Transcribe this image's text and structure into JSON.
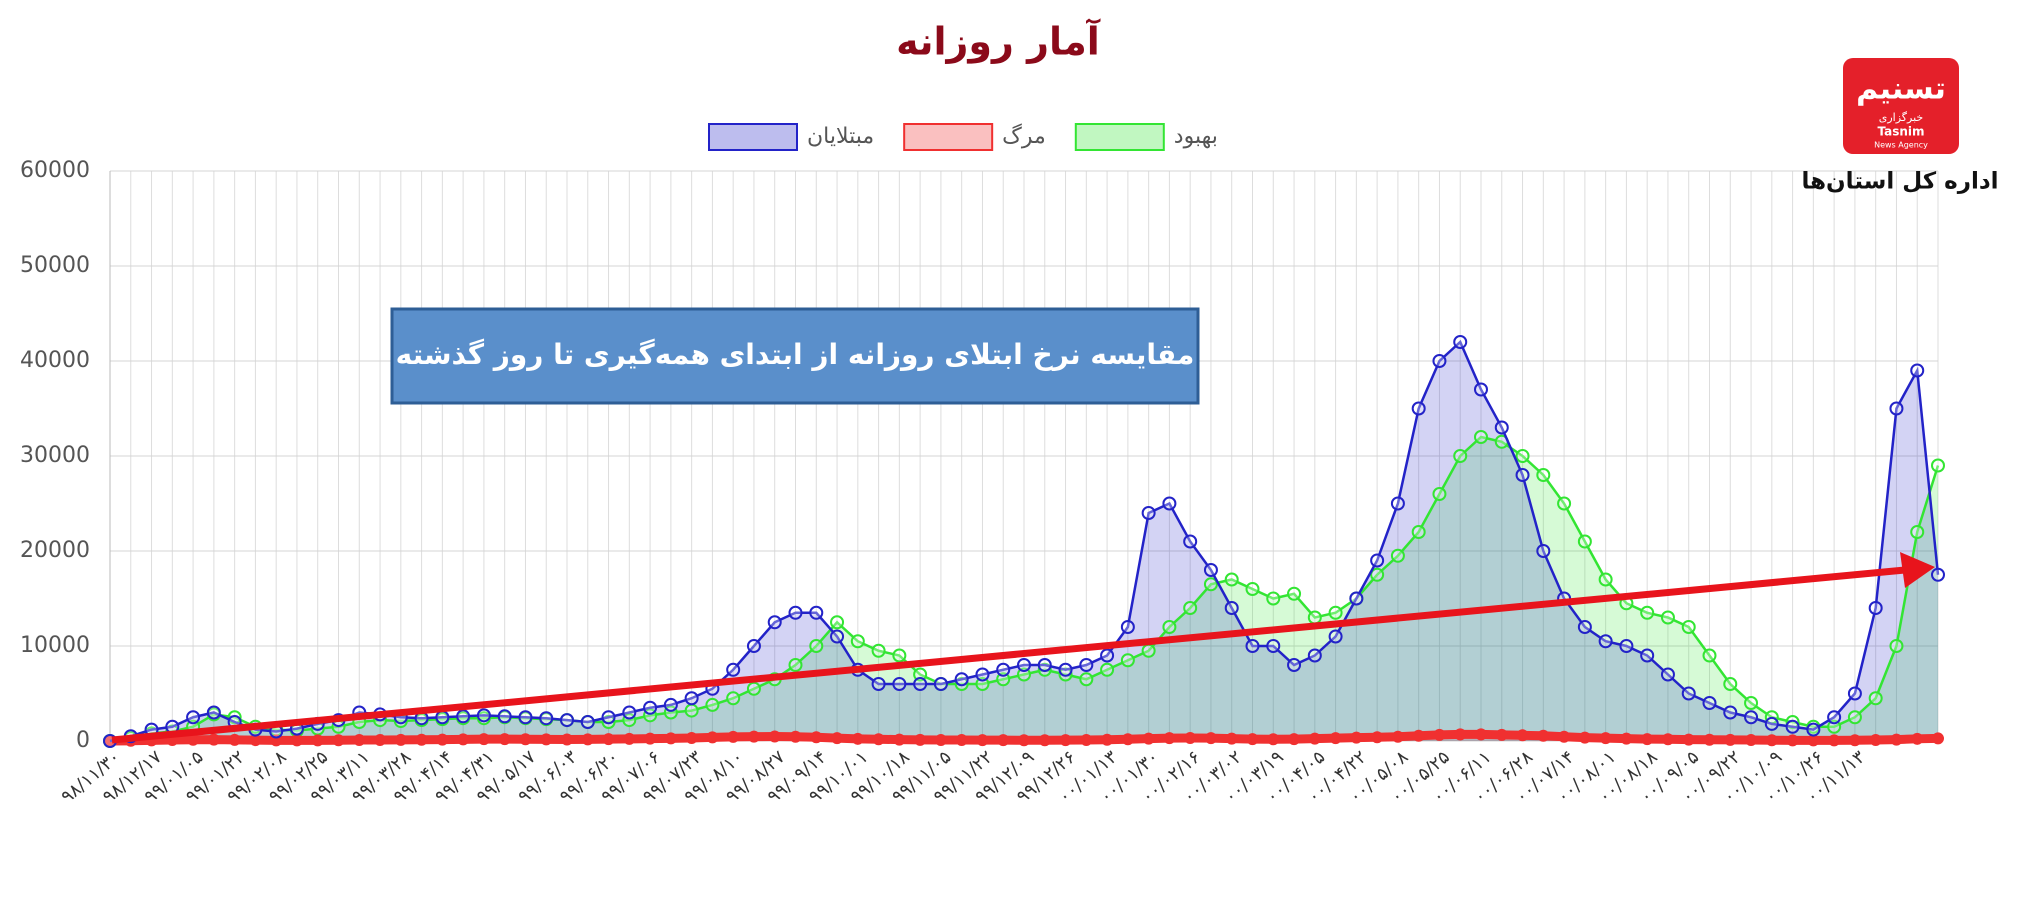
{
  "chart_data": {
    "type": "line",
    "title": "آمار روزانه",
    "annotation": "مقایسه نرخ ابتلای روزانه از ابتدای همه‌گیری تا روز گذشته",
    "categories": [
      "۹۸/۱۱/۳۰",
      null,
      "۹۸/۱۲/۱۷",
      null,
      "۹۹/۰۱/۰۵",
      null,
      "۹۹/۰۱/۲۲",
      null,
      "۹۹/۰۲/۰۸",
      null,
      "۹۹/۰۲/۲۵",
      null,
      "۹۹/۰۳/۱۱",
      null,
      "۹۹/۰۳/۲۸",
      null,
      "۹۹/۰۴/۱۴",
      null,
      "۹۹/۰۴/۳۱",
      null,
      "۹۹/۰۵/۱۷",
      null,
      "۹۹/۰۶/۰۳",
      null,
      "۹۹/۰۶/۲۰",
      null,
      "۹۹/۰۷/۰۶",
      null,
      "۹۹/۰۷/۲۳",
      null,
      "۹۹/۰۸/۱۰",
      null,
      "۹۹/۰۸/۲۷",
      null,
      "۹۹/۰۹/۱۴",
      null,
      "۹۹/۱۰/۰۱",
      null,
      "۹۹/۱۰/۱۸",
      null,
      "۹۹/۱۱/۰۵",
      null,
      "۹۹/۱۱/۲۲",
      null,
      "۹۹/۱۲/۰۹",
      null,
      "۹۹/۱۲/۲۶",
      null,
      "۰۰/۰۱/۱۳",
      null,
      "۰۰/۰۱/۳۰",
      null,
      "۰۰/۰۲/۱۶",
      null,
      "۰۰/۰۳/۰۲",
      null,
      "۰۰/۰۳/۱۹",
      null,
      "۰۰/۰۴/۰۵",
      null,
      "۰۰/۰۴/۲۲",
      null,
      "۰۰/۰۵/۰۸",
      null,
      "۰۰/۰۵/۲۵",
      null,
      "۰۰/۰۶/۱۱",
      null,
      "۰۰/۰۶/۲۸",
      null,
      "۰۰/۰۷/۱۴",
      null,
      "۰۰/۰۸/۰۱",
      null,
      "۰۰/۰۸/۱۸",
      null,
      "۰۰/۰۹/۰۵",
      null,
      "۰۰/۰۹/۲۲",
      null,
      "۰۰/۱۰/۰۹",
      null,
      "۰۰/۱۰/۲۶",
      null,
      "۰۰/۱۱/۱۳",
      null,
      null,
      null,
      null
    ],
    "series": [
      {
        "name": "مبتلایان",
        "color": "#2323c8",
        "values": [
          0,
          500,
          1200,
          1500,
          2500,
          3000,
          2000,
          1200,
          1000,
          1300,
          1800,
          2200,
          3000,
          2800,
          2500,
          2400,
          2500,
          2600,
          2700,
          2600,
          2500,
          2400,
          2200,
          2000,
          2500,
          3000,
          3500,
          3800,
          4500,
          5500,
          7500,
          10000,
          12500,
          13500,
          13500,
          11000,
          7500,
          6000,
          6000,
          6000,
          6000,
          6500,
          7000,
          7500,
          8000,
          8000,
          7500,
          8000,
          9000,
          12000,
          24000,
          25000,
          21000,
          18000,
          14000,
          10000,
          10000,
          8000,
          9000,
          11000,
          15000,
          19000,
          25000,
          35000,
          40000,
          42000,
          37000,
          33000,
          28000,
          20000,
          15000,
          12000,
          10500,
          10000,
          9000,
          7000,
          5000,
          4000,
          3000,
          2500,
          1800,
          1500,
          1200,
          2500,
          5000,
          14000,
          35000,
          39000,
          17500
        ]
      },
      {
        "name": "مرگ",
        "color": "#f03030",
        "values": [
          0,
          20,
          60,
          100,
          130,
          150,
          120,
          90,
          70,
          60,
          70,
          80,
          100,
          110,
          120,
          130,
          150,
          170,
          200,
          200,
          190,
          170,
          160,
          170,
          200,
          220,
          250,
          280,
          320,
          380,
          430,
          460,
          470,
          450,
          400,
          300,
          230,
          180,
          150,
          120,
          100,
          100,
          90,
          90,
          80,
          80,
          90,
          100,
          130,
          180,
          250,
          300,
          320,
          300,
          250,
          200,
          180,
          200,
          250,
          300,
          350,
          400,
          450,
          550,
          650,
          700,
          700,
          650,
          600,
          550,
          450,
          350,
          300,
          250,
          200,
          180,
          150,
          130,
          120,
          100,
          80,
          70,
          60,
          60,
          80,
          100,
          150,
          230,
          270
        ]
      },
      {
        "name": "بهبود",
        "color": "#33e533",
        "values": [
          0,
          300,
          800,
          1000,
          1500,
          2800,
          2500,
          1500,
          1200,
          1100,
          1300,
          1500,
          2000,
          2200,
          2100,
          2200,
          2300,
          2400,
          2400,
          2500,
          2400,
          2300,
          2200,
          2000,
          2000,
          2200,
          2700,
          3000,
          3200,
          3800,
          4500,
          5500,
          6500,
          8000,
          10000,
          12500,
          10500,
          9500,
          9000,
          7000,
          6000,
          6000,
          6000,
          6500,
          7000,
          7500,
          7000,
          6500,
          7500,
          8500,
          9500,
          12000,
          14000,
          16500,
          17000,
          16000,
          15000,
          15500,
          13000,
          13500,
          15000,
          17500,
          19500,
          22000,
          26000,
          30000,
          32000,
          31500,
          30000,
          28000,
          25000,
          21000,
          17000,
          14500,
          13500,
          13000,
          12000,
          9000,
          6000,
          4000,
          2500,
          2000,
          1500,
          1500,
          2500,
          4500,
          10000,
          22000,
          29000
        ]
      }
    ],
    "ylim": [
      0,
      60000
    ],
    "yticks": [
      0,
      10000,
      20000,
      30000,
      40000,
      50000,
      60000
    ],
    "grid": true,
    "legend": "top"
  },
  "logo": {
    "mark": "تسنیم",
    "agency": "خبرگزاری",
    "name": "Tasnim",
    "subtitle": "News Agency",
    "caption": "اداره کل استان‌ها"
  }
}
